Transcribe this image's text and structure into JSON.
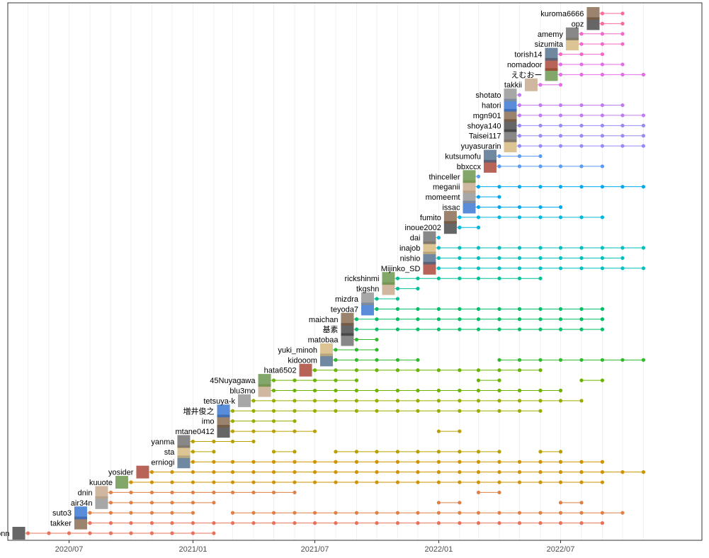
{
  "chart_data": {
    "type": "timeline-dot",
    "title": "",
    "xlabel": "",
    "ylabel": "",
    "x_ticks": [
      "2020/07",
      "2021/01",
      "2021/07",
      "2022/01",
      "2022/07"
    ],
    "x_range": [
      "2020-04-01",
      "2022-11-30"
    ],
    "grid": "vertical monthly minor + major lines",
    "legend": "none",
    "colors": [
      "#e8735a",
      "#df8046",
      "#cf9200",
      "#b9a000",
      "#9aac00",
      "#6cb300",
      "#2fb92c",
      "#00bd66",
      "#00c097",
      "#00bfbe",
      "#00b7de",
      "#00a8f0",
      "#5a9cf5",
      "#968af7",
      "#c27cf3",
      "#e36ee5",
      "#f567c8",
      "#f96a9e"
    ],
    "users": [
      {
        "name": "udonn",
        "active": [
          "2020-05",
          "2020-06",
          "2020-07",
          "2020-08",
          "2020-09",
          "2020-10",
          "2020-11",
          "2020-12",
          "2021-01",
          "2021-02"
        ]
      },
      {
        "name": "takker",
        "active": [
          "2020-08",
          "2020-09",
          "2020-10",
          "2020-11",
          "2020-12",
          "2021-01",
          "2021-02",
          "2021-03",
          "2021-04",
          "2021-05",
          "2021-06",
          "2021-07",
          "2021-08",
          "2021-09",
          "2021-10",
          "2021-11",
          "2021-12",
          "2022-01",
          "2022-02",
          "2022-03",
          "2022-04",
          "2022-05",
          "2022-06",
          "2022-07",
          "2022-08",
          "2022-09"
        ]
      },
      {
        "name": "suto3",
        "active": [
          "2020-08",
          "2020-09",
          "2020-10",
          "2020-11",
          "2020-12",
          "2021-01",
          "2021-03",
          "2021-04",
          "2021-05",
          "2021-06",
          "2021-07",
          "2021-08",
          "2021-09",
          "2021-10",
          "2021-11",
          "2021-12",
          "2022-01",
          "2022-02",
          "2022-03",
          "2022-04",
          "2022-05",
          "2022-06",
          "2022-07",
          "2022-08",
          "2022-09",
          "2022-10"
        ]
      },
      {
        "name": "air34n",
        "active": [
          "2020-09",
          "2020-10",
          "2020-11",
          "2020-12",
          "2021-01",
          "2021-02",
          "2022-01",
          "2022-02",
          "2022-07",
          "2022-08"
        ]
      },
      {
        "name": "dnin",
        "active": [
          "2020-09",
          "2020-10",
          "2020-11",
          "2020-12",
          "2021-01",
          "2021-02",
          "2021-03",
          "2021-04",
          "2021-05",
          "2021-06",
          "2022-03",
          "2022-04"
        ]
      },
      {
        "name": "kuuote",
        "active": [
          "2020-10",
          "2020-11",
          "2020-12",
          "2021-01",
          "2021-02",
          "2021-03",
          "2021-04",
          "2021-05",
          "2021-06",
          "2021-07",
          "2021-08",
          "2021-09",
          "2021-10",
          "2021-11",
          "2021-12",
          "2022-01",
          "2022-02",
          "2022-03",
          "2022-04",
          "2022-05",
          "2022-06",
          "2022-07",
          "2022-08",
          "2022-09"
        ]
      },
      {
        "name": "yosider",
        "active": [
          "2020-11",
          "2020-12",
          "2021-01",
          "2021-02",
          "2021-03",
          "2021-04",
          "2021-05",
          "2021-06",
          "2021-07",
          "2021-08",
          "2021-09",
          "2021-10",
          "2021-11",
          "2021-12",
          "2022-01",
          "2022-02",
          "2022-03",
          "2022-04",
          "2022-05",
          "2022-06",
          "2022-07",
          "2022-08",
          "2022-09",
          "2022-10",
          "2022-11"
        ]
      },
      {
        "name": "erniogi",
        "active": [
          "2021-01",
          "2021-02",
          "2021-03",
          "2021-04",
          "2021-05",
          "2021-06",
          "2021-07",
          "2021-08",
          "2021-09",
          "2021-10",
          "2021-11",
          "2021-12",
          "2022-01",
          "2022-02",
          "2022-03",
          "2022-04",
          "2022-05",
          "2022-06",
          "2022-07",
          "2022-08",
          "2022-09"
        ]
      },
      {
        "name": "sta",
        "active": [
          "2021-01",
          "2021-02",
          "2021-05",
          "2021-06",
          "2021-08",
          "2021-09",
          "2021-10",
          "2021-11",
          "2021-12",
          "2022-01",
          "2022-02",
          "2022-03",
          "2022-04",
          "2022-06",
          "2022-07"
        ]
      },
      {
        "name": "yanma",
        "active": [
          "2021-01",
          "2021-02",
          "2021-03",
          "2021-04"
        ]
      },
      {
        "name": "mtane0412",
        "active": [
          "2021-03",
          "2021-04",
          "2021-05",
          "2021-06",
          "2021-07",
          "2022-01",
          "2022-02"
        ]
      },
      {
        "name": "imo",
        "active": [
          "2021-03",
          "2021-04",
          "2021-05",
          "2021-06"
        ]
      },
      {
        "name": "増井俊之",
        "active": [
          "2021-03",
          "2021-04",
          "2021-05",
          "2021-06",
          "2021-07",
          "2021-08",
          "2021-09",
          "2021-10",
          "2021-11",
          "2021-12",
          "2022-01",
          "2022-02",
          "2022-03",
          "2022-04",
          "2022-05",
          "2022-06"
        ]
      },
      {
        "name": "tetsuya-k",
        "active": [
          "2021-04",
          "2021-05",
          "2021-06",
          "2021-07",
          "2021-08",
          "2021-09",
          "2021-10",
          "2021-11",
          "2021-12",
          "2022-01",
          "2022-02",
          "2022-03",
          "2022-04",
          "2022-05",
          "2022-06",
          "2022-07",
          "2022-08"
        ]
      },
      {
        "name": "blu3mo",
        "active": [
          "2021-05",
          "2021-06",
          "2021-07",
          "2021-08",
          "2021-09",
          "2021-10",
          "2021-11",
          "2021-12",
          "2022-01",
          "2022-02",
          "2022-03",
          "2022-04",
          "2022-05",
          "2022-06",
          "2022-07"
        ]
      },
      {
        "name": "45Nuyagawa",
        "active": [
          "2021-05",
          "2021-06",
          "2021-07",
          "2021-08",
          "2021-09",
          "2022-03",
          "2022-04",
          "2022-08",
          "2022-09"
        ]
      },
      {
        "name": "hata6502",
        "active": [
          "2021-07",
          "2021-08",
          "2021-09",
          "2021-10",
          "2021-11",
          "2021-12",
          "2022-01",
          "2022-02",
          "2022-03",
          "2022-04",
          "2022-05",
          "2022-06"
        ]
      },
      {
        "name": "kidooom",
        "active": [
          "2021-08",
          "2021-09",
          "2021-10",
          "2021-11",
          "2021-12",
          "2022-04",
          "2022-05",
          "2022-06",
          "2022-07",
          "2022-08",
          "2022-09",
          "2022-10",
          "2022-11"
        ]
      },
      {
        "name": "yuki_minoh",
        "active": [
          "2021-08",
          "2021-09",
          "2021-10"
        ]
      },
      {
        "name": "matobaa",
        "active": [
          "2021-09",
          "2021-10"
        ]
      },
      {
        "name": "基素",
        "active": [
          "2021-09",
          "2021-10",
          "2021-11",
          "2021-12",
          "2022-01",
          "2022-02",
          "2022-03",
          "2022-04",
          "2022-05",
          "2022-06",
          "2022-07",
          "2022-08",
          "2022-09"
        ]
      },
      {
        "name": "maichan",
        "active": [
          "2021-09",
          "2021-10",
          "2021-11",
          "2021-12",
          "2022-01",
          "2022-02",
          "2022-03",
          "2022-04",
          "2022-05",
          "2022-06",
          "2022-07",
          "2022-08",
          "2022-09"
        ]
      },
      {
        "name": "teyoda7",
        "active": [
          "2021-10",
          "2021-11",
          "2021-12",
          "2022-01",
          "2022-02",
          "2022-03",
          "2022-04",
          "2022-05",
          "2022-06",
          "2022-07",
          "2022-08",
          "2022-09"
        ]
      },
      {
        "name": "mizdra",
        "active": [
          "2021-10",
          "2021-11"
        ]
      },
      {
        "name": "tkgshn",
        "active": [
          "2021-11",
          "2021-12"
        ]
      },
      {
        "name": "rickshinmi",
        "active": [
          "2021-11",
          "2021-12",
          "2022-01",
          "2022-02",
          "2022-03",
          "2022-04",
          "2022-05",
          "2022-06"
        ]
      },
      {
        "name": "Mijinko_SD",
        "active": [
          "2022-01",
          "2022-02",
          "2022-03",
          "2022-04",
          "2022-05",
          "2022-06",
          "2022-07",
          "2022-08",
          "2022-09",
          "2022-10",
          "2022-11"
        ]
      },
      {
        "name": "nishio",
        "active": [
          "2022-01",
          "2022-02",
          "2022-03",
          "2022-04",
          "2022-05",
          "2022-06",
          "2022-07",
          "2022-08",
          "2022-09",
          "2022-10"
        ]
      },
      {
        "name": "inajob",
        "active": [
          "2022-01",
          "2022-02",
          "2022-03",
          "2022-04",
          "2022-05",
          "2022-06",
          "2022-07",
          "2022-08",
          "2022-09",
          "2022-10",
          "2022-11"
        ]
      },
      {
        "name": "dai",
        "active": [
          "2022-01"
        ]
      },
      {
        "name": "inoue2002",
        "active": [
          "2022-02",
          "2022-03"
        ]
      },
      {
        "name": "fumito",
        "active": [
          "2022-02",
          "2022-03",
          "2022-04",
          "2022-05",
          "2022-06",
          "2022-07",
          "2022-08",
          "2022-09"
        ]
      },
      {
        "name": "issac",
        "active": [
          "2022-03",
          "2022-04",
          "2022-05",
          "2022-06",
          "2022-07"
        ]
      },
      {
        "name": "momeemt",
        "active": [
          "2022-03",
          "2022-04"
        ]
      },
      {
        "name": "meganii",
        "active": [
          "2022-03",
          "2022-04",
          "2022-05",
          "2022-06",
          "2022-07",
          "2022-08",
          "2022-09",
          "2022-10",
          "2022-11"
        ]
      },
      {
        "name": "thinceller",
        "active": [
          "2022-03"
        ]
      },
      {
        "name": "bbxccx",
        "active": [
          "2022-04",
          "2022-05",
          "2022-06",
          "2022-07",
          "2022-08",
          "2022-09"
        ]
      },
      {
        "name": "kutsumofu",
        "active": [
          "2022-04",
          "2022-05",
          "2022-06"
        ]
      },
      {
        "name": "yuyasurarin",
        "active": [
          "2022-05",
          "2022-06",
          "2022-07",
          "2022-08",
          "2022-09",
          "2022-10",
          "2022-11"
        ]
      },
      {
        "name": "Taisei117",
        "active": [
          "2022-05",
          "2022-06",
          "2022-07",
          "2022-08",
          "2022-09",
          "2022-10",
          "2022-11"
        ]
      },
      {
        "name": "shoya140",
        "active": [
          "2022-05",
          "2022-06",
          "2022-07",
          "2022-08",
          "2022-09",
          "2022-10",
          "2022-11"
        ]
      },
      {
        "name": "mgn901",
        "active": [
          "2022-05",
          "2022-06",
          "2022-07",
          "2022-08",
          "2022-09",
          "2022-10",
          "2022-11"
        ]
      },
      {
        "name": "hatori",
        "active": [
          "2022-05",
          "2022-06",
          "2022-07",
          "2022-08",
          "2022-09",
          "2022-10"
        ]
      },
      {
        "name": "shotato",
        "active": [
          "2022-05"
        ]
      },
      {
        "name": "takkii",
        "active": [
          "2022-06",
          "2022-07"
        ]
      },
      {
        "name": "えむおー",
        "active": [
          "2022-07",
          "2022-08",
          "2022-09",
          "2022-10",
          "2022-11"
        ]
      },
      {
        "name": "nomadoor",
        "active": [
          "2022-07",
          "2022-08",
          "2022-09",
          "2022-10"
        ]
      },
      {
        "name": "torish14",
        "active": [
          "2022-07",
          "2022-08",
          "2022-09"
        ]
      },
      {
        "name": "sizumita",
        "active": [
          "2022-08",
          "2022-09",
          "2022-10"
        ]
      },
      {
        "name": "amemy",
        "active": [
          "2022-08",
          "2022-09",
          "2022-10"
        ]
      },
      {
        "name": "opz",
        "active": [
          "2022-09",
          "2022-10"
        ]
      },
      {
        "name": "kuroma6666",
        "active": [
          "2022-09",
          "2022-10"
        ]
      }
    ]
  }
}
